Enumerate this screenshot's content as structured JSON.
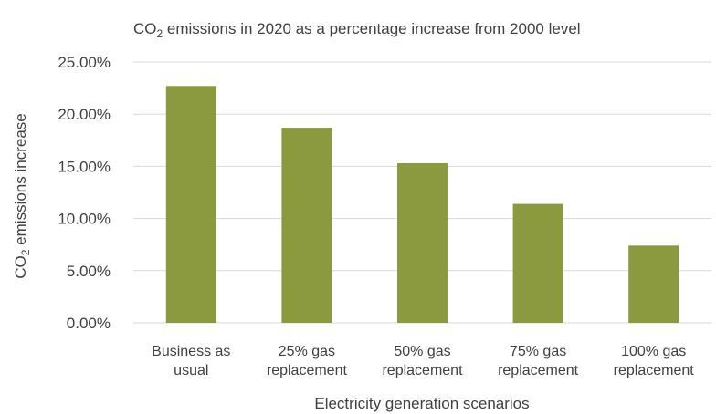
{
  "chart_data": {
    "type": "bar",
    "title_parts": [
      "CO",
      "2",
      " emissions in 2020 as a percentage increase from 2000 level"
    ],
    "xlabel": "Electricity generation scenarios",
    "ylabel_parts": [
      "CO",
      "2",
      " emissions increase"
    ],
    "categories": [
      [
        "Business as",
        "usual"
      ],
      [
        "25% gas",
        "replacement"
      ],
      [
        "50% gas",
        "replacement"
      ],
      [
        "75% gas",
        "replacement"
      ],
      [
        "100% gas",
        "replacement"
      ]
    ],
    "values": [
      22.7,
      18.7,
      15.3,
      11.4,
      7.4
    ],
    "ylim": [
      0,
      25
    ],
    "yticks": [
      "0.00%",
      "5.00%",
      "10.00%",
      "15.00%",
      "20.00%",
      "25.00%"
    ],
    "grid": true,
    "bar_color": "#8b9a3f",
    "grid_color": "#d9d9d9"
  }
}
